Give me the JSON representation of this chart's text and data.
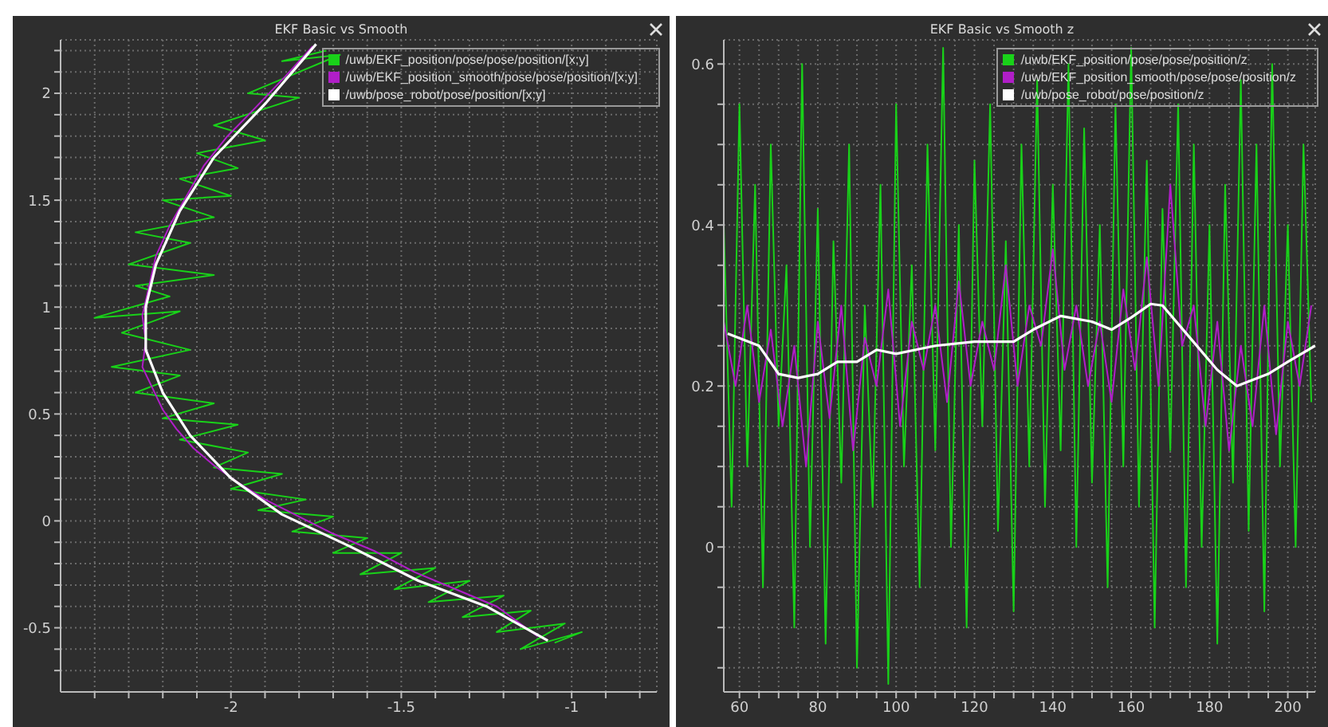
{
  "chart_data": [
    {
      "type": "line",
      "title": "EKF Basic vs Smooth",
      "legend": "top right",
      "grid": true,
      "marker": "none",
      "xlim": [
        -2.5,
        -0.75
      ],
      "ylim": [
        -0.8,
        2.25
      ],
      "xticks": [
        {
          "value": -2.4,
          "label": null
        },
        {
          "value": -2.3,
          "label": null
        },
        {
          "value": -2.2,
          "label": null
        },
        {
          "value": -2.1,
          "label": null
        },
        -2,
        {
          "value": -1.9,
          "label": null
        },
        {
          "value": -1.8,
          "label": null
        },
        {
          "value": -1.7,
          "label": null
        },
        {
          "value": -1.6,
          "label": null
        },
        -1.5,
        {
          "value": -1.4,
          "label": null
        },
        {
          "value": -1.3,
          "label": null
        },
        {
          "value": -1.2,
          "label": null
        },
        {
          "value": -1.1,
          "label": null
        },
        -1,
        {
          "value": -0.9,
          "label": null
        },
        {
          "value": -0.8,
          "label": null
        }
      ],
      "yticks": [
        {
          "value": -0.7,
          "label": null
        },
        {
          "value": -0.6,
          "label": null
        },
        -0.5,
        {
          "value": -0.4,
          "label": null
        },
        {
          "value": -0.3,
          "label": null
        },
        {
          "value": -0.2,
          "label": null
        },
        {
          "value": -0.1,
          "label": null
        },
        0,
        {
          "value": 0.1,
          "label": null
        },
        {
          "value": 0.2,
          "label": null
        },
        {
          "value": 0.3,
          "label": null
        },
        {
          "value": 0.4,
          "label": null
        },
        0.5,
        {
          "value": 0.6,
          "label": null
        },
        {
          "value": 0.7,
          "label": null
        },
        {
          "value": 0.8,
          "label": null
        },
        {
          "value": 0.9,
          "label": null
        },
        1,
        {
          "value": 1.1,
          "label": null
        },
        {
          "value": 1.2,
          "label": null
        },
        {
          "value": 1.3,
          "label": null
        },
        {
          "value": 1.4,
          "label": null
        },
        1.5,
        {
          "value": 1.6,
          "label": null
        },
        {
          "value": 1.7,
          "label": null
        },
        {
          "value": 1.8,
          "label": null
        },
        {
          "value": 1.9,
          "label": null
        },
        2,
        {
          "value": 2.1,
          "label": null
        },
        {
          "value": 2.2,
          "label": null
        }
      ],
      "series": [
        {
          "name": "/uwb/EKF_position/pose/pose/position/[x;y]",
          "color": "#19d219",
          "x": [
            -1.72,
            -1.85,
            -1.68,
            -1.95,
            -1.8,
            -2.05,
            -1.9,
            -2.1,
            -1.98,
            -2.15,
            -2.0,
            -2.2,
            -2.05,
            -2.28,
            -2.12,
            -2.3,
            -2.05,
            -2.28,
            -2.18,
            -2.4,
            -2.15,
            -2.32,
            -2.12,
            -2.35,
            -2.15,
            -2.28,
            -2.05,
            -2.2,
            -1.98,
            -2.15,
            -1.95,
            -2.05,
            -1.85,
            -2.0,
            -1.78,
            -1.92,
            -1.7,
            -1.82,
            -1.6,
            -1.7,
            -1.5,
            -1.62,
            -1.4,
            -1.52,
            -1.3,
            -1.42,
            -1.2,
            -1.32,
            -1.12,
            -1.22,
            -1.02,
            -1.15,
            -0.97,
            -1.05
          ],
          "values": [
            2.2,
            2.15,
            2.18,
            2.0,
            1.98,
            1.85,
            1.78,
            1.72,
            1.65,
            1.6,
            1.52,
            1.5,
            1.42,
            1.35,
            1.3,
            1.2,
            1.15,
            1.1,
            1.05,
            0.95,
            0.98,
            0.88,
            0.8,
            0.72,
            0.68,
            0.6,
            0.55,
            0.48,
            0.45,
            0.38,
            0.32,
            0.25,
            0.22,
            0.15,
            0.1,
            0.05,
            0.02,
            -0.05,
            -0.08,
            -0.15,
            -0.15,
            -0.25,
            -0.22,
            -0.32,
            -0.28,
            -0.38,
            -0.35,
            -0.45,
            -0.42,
            -0.52,
            -0.48,
            -0.6,
            -0.52,
            -0.57
          ]
        },
        {
          "name": "/uwb/EKF_position_smooth/pose/pose/position/[x;y]",
          "color": "#b01ec8",
          "x": [
            -1.76,
            -1.84,
            -1.93,
            -2.01,
            -2.08,
            -2.13,
            -2.18,
            -2.22,
            -2.24,
            -2.26,
            -2.25,
            -2.26,
            -2.23,
            -2.2,
            -2.16,
            -2.11,
            -2.05,
            -1.98,
            -1.9,
            -1.8,
            -1.7,
            -1.58,
            -1.46,
            -1.34,
            -1.22,
            -1.1
          ],
          "values": [
            2.22,
            2.08,
            1.93,
            1.8,
            1.66,
            1.52,
            1.38,
            1.24,
            1.1,
            0.96,
            0.84,
            0.72,
            0.62,
            0.52,
            0.43,
            0.34,
            0.26,
            0.18,
            0.1,
            0.02,
            -0.06,
            -0.14,
            -0.24,
            -0.32,
            -0.4,
            -0.54
          ]
        },
        {
          "name": "/uwb/pose_robot/pose/position/[x;y]",
          "color": "#ffffff",
          "x": [
            -1.75,
            -1.9,
            -2.05,
            -2.15,
            -2.22,
            -2.25,
            -2.25,
            -2.2,
            -2.12,
            -2.0,
            -1.85,
            -1.65,
            -1.45,
            -1.25,
            -1.07
          ],
          "values": [
            2.23,
            1.95,
            1.7,
            1.45,
            1.2,
            1.0,
            0.8,
            0.6,
            0.4,
            0.2,
            0.03,
            -0.12,
            -0.28,
            -0.4,
            -0.56
          ]
        }
      ]
    },
    {
      "type": "line",
      "title": "EKF Basic vs Smooth z",
      "legend": "top right",
      "grid": true,
      "marker": "none",
      "xlim": [
        56,
        207
      ],
      "ylim": [
        -0.18,
        0.63
      ],
      "xticks": [
        60,
        {
          "value": 65,
          "label": null
        },
        {
          "value": 70,
          "label": null
        },
        {
          "value": 75,
          "label": null
        },
        80,
        {
          "value": 85,
          "label": null
        },
        {
          "value": 90,
          "label": null
        },
        {
          "value": 95,
          "label": null
        },
        100,
        {
          "value": 105,
          "label": null
        },
        {
          "value": 110,
          "label": null
        },
        {
          "value": 115,
          "label": null
        },
        120,
        {
          "value": 125,
          "label": null
        },
        {
          "value": 130,
          "label": null
        },
        {
          "value": 135,
          "label": null
        },
        140,
        {
          "value": 145,
          "label": null
        },
        {
          "value": 150,
          "label": null
        },
        {
          "value": 155,
          "label": null
        },
        160,
        {
          "value": 165,
          "label": null
        },
        {
          "value": 170,
          "label": null
        },
        {
          "value": 175,
          "label": null
        },
        180,
        {
          "value": 185,
          "label": null
        },
        {
          "value": 190,
          "label": null
        },
        {
          "value": 195,
          "label": null
        },
        200,
        {
          "value": 205,
          "label": null
        }
      ],
      "yticks": [
        {
          "value": -0.15,
          "label": null
        },
        {
          "value": -0.1,
          "label": null
        },
        {
          "value": -0.05,
          "label": null
        },
        0,
        {
          "value": 0.05,
          "label": null
        },
        {
          "value": 0.1,
          "label": null
        },
        {
          "value": 0.15,
          "label": null
        },
        0.2,
        {
          "value": 0.25,
          "label": null
        },
        {
          "value": 0.3,
          "label": null
        },
        {
          "value": 0.35,
          "label": null
        },
        0.4,
        {
          "value": 0.45,
          "label": null
        },
        {
          "value": 0.5,
          "label": null
        },
        {
          "value": 0.55,
          "label": null
        },
        0.6
      ],
      "series": [
        {
          "name": "/uwb/EKF_position/pose/pose/position/z",
          "color": "#19d219",
          "x": [
            56,
            58,
            60,
            62,
            64,
            66,
            68,
            70,
            72,
            74,
            76,
            78,
            80,
            82,
            84,
            86,
            88,
            90,
            92,
            94,
            96,
            98,
            100,
            102,
            104,
            106,
            108,
            110,
            112,
            114,
            116,
            118,
            120,
            122,
            124,
            126,
            128,
            130,
            132,
            134,
            136,
            138,
            140,
            142,
            144,
            146,
            148,
            150,
            152,
            154,
            156,
            158,
            160,
            162,
            164,
            166,
            168,
            170,
            172,
            174,
            176,
            178,
            180,
            182,
            184,
            186,
            188,
            190,
            192,
            194,
            196,
            198,
            200,
            202,
            204,
            206
          ],
          "values": [
            0.4,
            0.05,
            0.55,
            0.1,
            0.45,
            -0.05,
            0.5,
            0.15,
            0.35,
            -0.1,
            0.6,
            0.0,
            0.42,
            -0.12,
            0.38,
            0.08,
            0.5,
            -0.15,
            0.3,
            0.05,
            0.45,
            -0.17,
            0.55,
            0.1,
            0.35,
            -0.05,
            0.5,
            0.12,
            0.62,
            0.0,
            0.4,
            -0.1,
            0.48,
            0.15,
            0.55,
            0.02,
            0.38,
            -0.08,
            0.5,
            0.1,
            0.58,
            0.05,
            0.45,
            0.12,
            0.6,
            0.0,
            0.52,
            0.08,
            0.4,
            -0.05,
            0.55,
            0.1,
            0.62,
            0.05,
            0.48,
            -0.1,
            0.42,
            0.12,
            0.55,
            -0.05,
            0.5,
            0.0,
            0.4,
            -0.12,
            0.45,
            0.08,
            0.58,
            0.02,
            0.5,
            -0.08,
            0.6,
            0.1,
            0.4,
            0.0,
            0.5,
            0.18
          ]
        },
        {
          "name": "/uwb/EKF_position_smooth/pose/pose/position/z",
          "color": "#b01ec8",
          "x": [
            56,
            59,
            62,
            65,
            68,
            71,
            74,
            77,
            80,
            83,
            86,
            89,
            92,
            95,
            98,
            101,
            104,
            107,
            110,
            113,
            116,
            119,
            122,
            125,
            128,
            131,
            134,
            137,
            140,
            143,
            146,
            149,
            152,
            155,
            158,
            161,
            164,
            167,
            170,
            173,
            176,
            179,
            182,
            185,
            188,
            191,
            194,
            197,
            200,
            203,
            206
          ],
          "values": [
            0.28,
            0.2,
            0.3,
            0.18,
            0.27,
            0.15,
            0.25,
            0.1,
            0.28,
            0.16,
            0.3,
            0.12,
            0.26,
            0.2,
            0.32,
            0.15,
            0.28,
            0.22,
            0.3,
            0.18,
            0.33,
            0.2,
            0.28,
            0.22,
            0.35,
            0.2,
            0.3,
            0.25,
            0.37,
            0.22,
            0.3,
            0.2,
            0.28,
            0.18,
            0.32,
            0.22,
            0.36,
            0.2,
            0.45,
            0.25,
            0.3,
            0.15,
            0.28,
            0.12,
            0.25,
            0.15,
            0.3,
            0.14,
            0.28,
            0.2,
            0.3
          ]
        },
        {
          "name": "/uwb/pose_robot/pose/position/z",
          "color": "#ffffff",
          "x": [
            57,
            65,
            70,
            75,
            80,
            85,
            90,
            95,
            100,
            105,
            110,
            120,
            130,
            135,
            142,
            150,
            155,
            160,
            165,
            168,
            175,
            182,
            187,
            195,
            200,
            207
          ],
          "values": [
            0.265,
            0.25,
            0.215,
            0.21,
            0.215,
            0.23,
            0.23,
            0.245,
            0.24,
            0.245,
            0.25,
            0.255,
            0.255,
            0.27,
            0.287,
            0.28,
            0.27,
            0.285,
            0.302,
            0.3,
            0.26,
            0.22,
            0.2,
            0.215,
            0.23,
            0.25
          ]
        }
      ]
    }
  ]
}
